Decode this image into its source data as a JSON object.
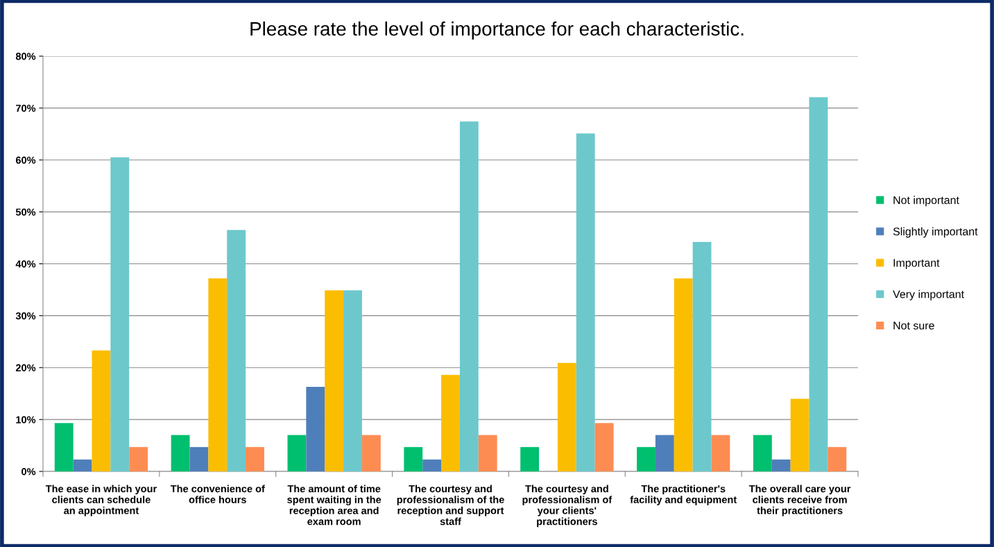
{
  "chart_data": {
    "type": "bar",
    "title": "Please rate the level of importance for each characteristic.",
    "categories": [
      "The ease in which your clients can schedule an appointment",
      "The convenience of office hours",
      "The amount of time spent waiting in the reception area and exam room",
      "The courtesy and professionalism of the reception and support staff",
      "The courtesy and professionalism of your clients' practitioners",
      "The practitioner's facility and equipment",
      "The overall care your clients receive from their practitioners"
    ],
    "series": [
      {
        "name": "Not important",
        "color": "#00bf6f",
        "values": [
          9.3,
          7.0,
          7.0,
          4.7,
          4.7,
          4.7,
          7.0
        ]
      },
      {
        "name": "Slightly important",
        "color": "#4f7fba",
        "values": [
          2.3,
          4.7,
          16.3,
          2.3,
          0,
          7.0,
          2.3
        ]
      },
      {
        "name": "Important",
        "color": "#fbbd00",
        "values": [
          23.3,
          37.2,
          34.9,
          18.6,
          20.9,
          37.2,
          14.0
        ]
      },
      {
        "name": "Very important",
        "color": "#6dc8cc",
        "values": [
          60.5,
          46.5,
          34.9,
          67.4,
          65.1,
          44.2,
          72.1
        ]
      },
      {
        "name": "Not sure",
        "color": "#fd8c52",
        "values": [
          4.7,
          4.7,
          7.0,
          7.0,
          9.3,
          7.0,
          4.7
        ]
      }
    ],
    "ylim": [
      0,
      80
    ],
    "yticks": [
      {
        "value": 0,
        "label": "0%"
      },
      {
        "value": 10,
        "label": "10%"
      },
      {
        "value": 20,
        "label": "20%"
      },
      {
        "value": 30,
        "label": "30%"
      },
      {
        "value": 40,
        "label": "40%"
      },
      {
        "value": 50,
        "label": "50%"
      },
      {
        "value": 60,
        "label": "60%"
      },
      {
        "value": 70,
        "label": "70%"
      },
      {
        "value": 80,
        "label": "80%"
      }
    ],
    "grid": "y",
    "legend": "right"
  }
}
